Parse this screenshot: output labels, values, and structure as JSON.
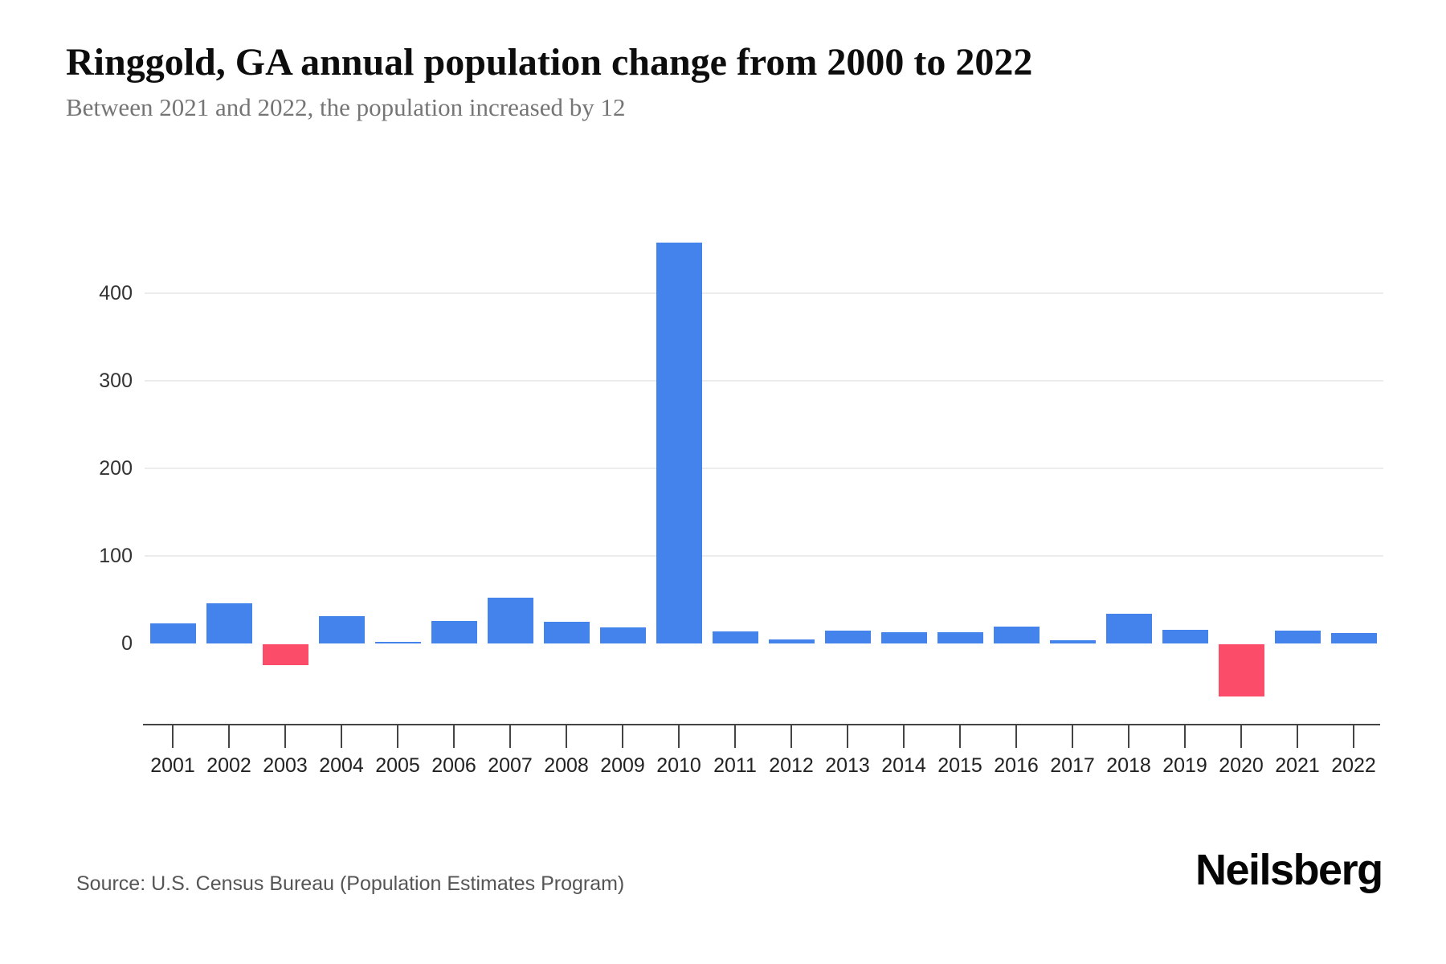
{
  "header": {
    "title": "Ringgold, GA annual population change from 2000 to 2022",
    "subtitle": "Between 2021 and 2022, the population increased by 12"
  },
  "footer": {
    "source": "Source: U.S. Census Bureau (Population Estimates Program)",
    "brand": "Neilsberg"
  },
  "chart_data": {
    "type": "bar",
    "title": "Ringgold, GA annual population change from 2000 to 2022",
    "subtitle": "Between 2021 and 2022, the population increased by 12",
    "categories": [
      "2001",
      "2002",
      "2003",
      "2004",
      "2005",
      "2006",
      "2007",
      "2008",
      "2009",
      "2010",
      "2011",
      "2012",
      "2013",
      "2014",
      "2015",
      "2016",
      "2017",
      "2018",
      "2019",
      "2020",
      "2021",
      "2022"
    ],
    "values": [
      23,
      46,
      -24,
      31,
      2,
      26,
      52,
      25,
      18,
      458,
      14,
      5,
      15,
      13,
      13,
      19,
      4,
      34,
      16,
      -60,
      15,
      12
    ],
    "yticks": [
      400,
      300,
      200,
      100,
      0
    ],
    "ylim": [
      -95,
      505
    ],
    "xlabel": "",
    "ylabel": "",
    "grid": true,
    "legend": false,
    "colors": {
      "positive": "#4583EC",
      "negative": "#FB4D69",
      "gridline": "#ECECEC",
      "axis": "#444444"
    }
  }
}
